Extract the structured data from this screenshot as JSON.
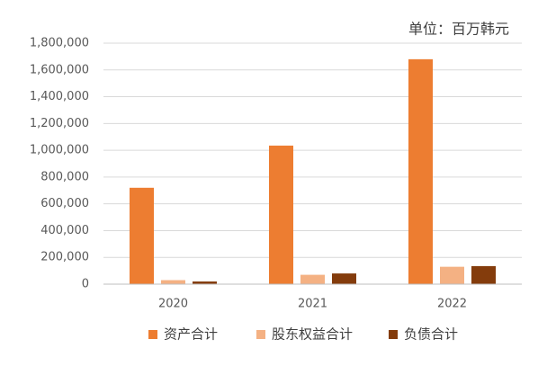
{
  "chart_data": {
    "type": "bar",
    "annotation": "单位：百万韩元",
    "categories": [
      "2020",
      "2021",
      "2022"
    ],
    "series": [
      {
        "name": "资产合计",
        "color": "#ed7d31",
        "values": [
          720000,
          1035000,
          1680000
        ]
      },
      {
        "name": "股东权益合计",
        "color": "#f4b183",
        "values": [
          30000,
          70000,
          130000
        ]
      },
      {
        "name": "负债合计",
        "color": "#843c0c",
        "values": [
          20000,
          80000,
          135000
        ]
      }
    ],
    "ylim": [
      0,
      1800000
    ],
    "yticks": [
      0,
      {
        "value": 200000,
        "label": "200,000"
      },
      {
        "value": 400000,
        "label": "400,000"
      },
      {
        "value": 600000,
        "label": "600,000"
      },
      {
        "value": 800000,
        "label": "800,000"
      },
      {
        "value": 1000000,
        "label": "1,000,000"
      },
      {
        "value": 1200000,
        "label": "1,200,000"
      },
      {
        "value": 1400000,
        "label": "1,400,000"
      },
      {
        "value": 1600000,
        "label": "1,600,000"
      },
      {
        "value": 1800000,
        "label": "1,800,000"
      }
    ],
    "grid": true,
    "legend": "bottom"
  }
}
